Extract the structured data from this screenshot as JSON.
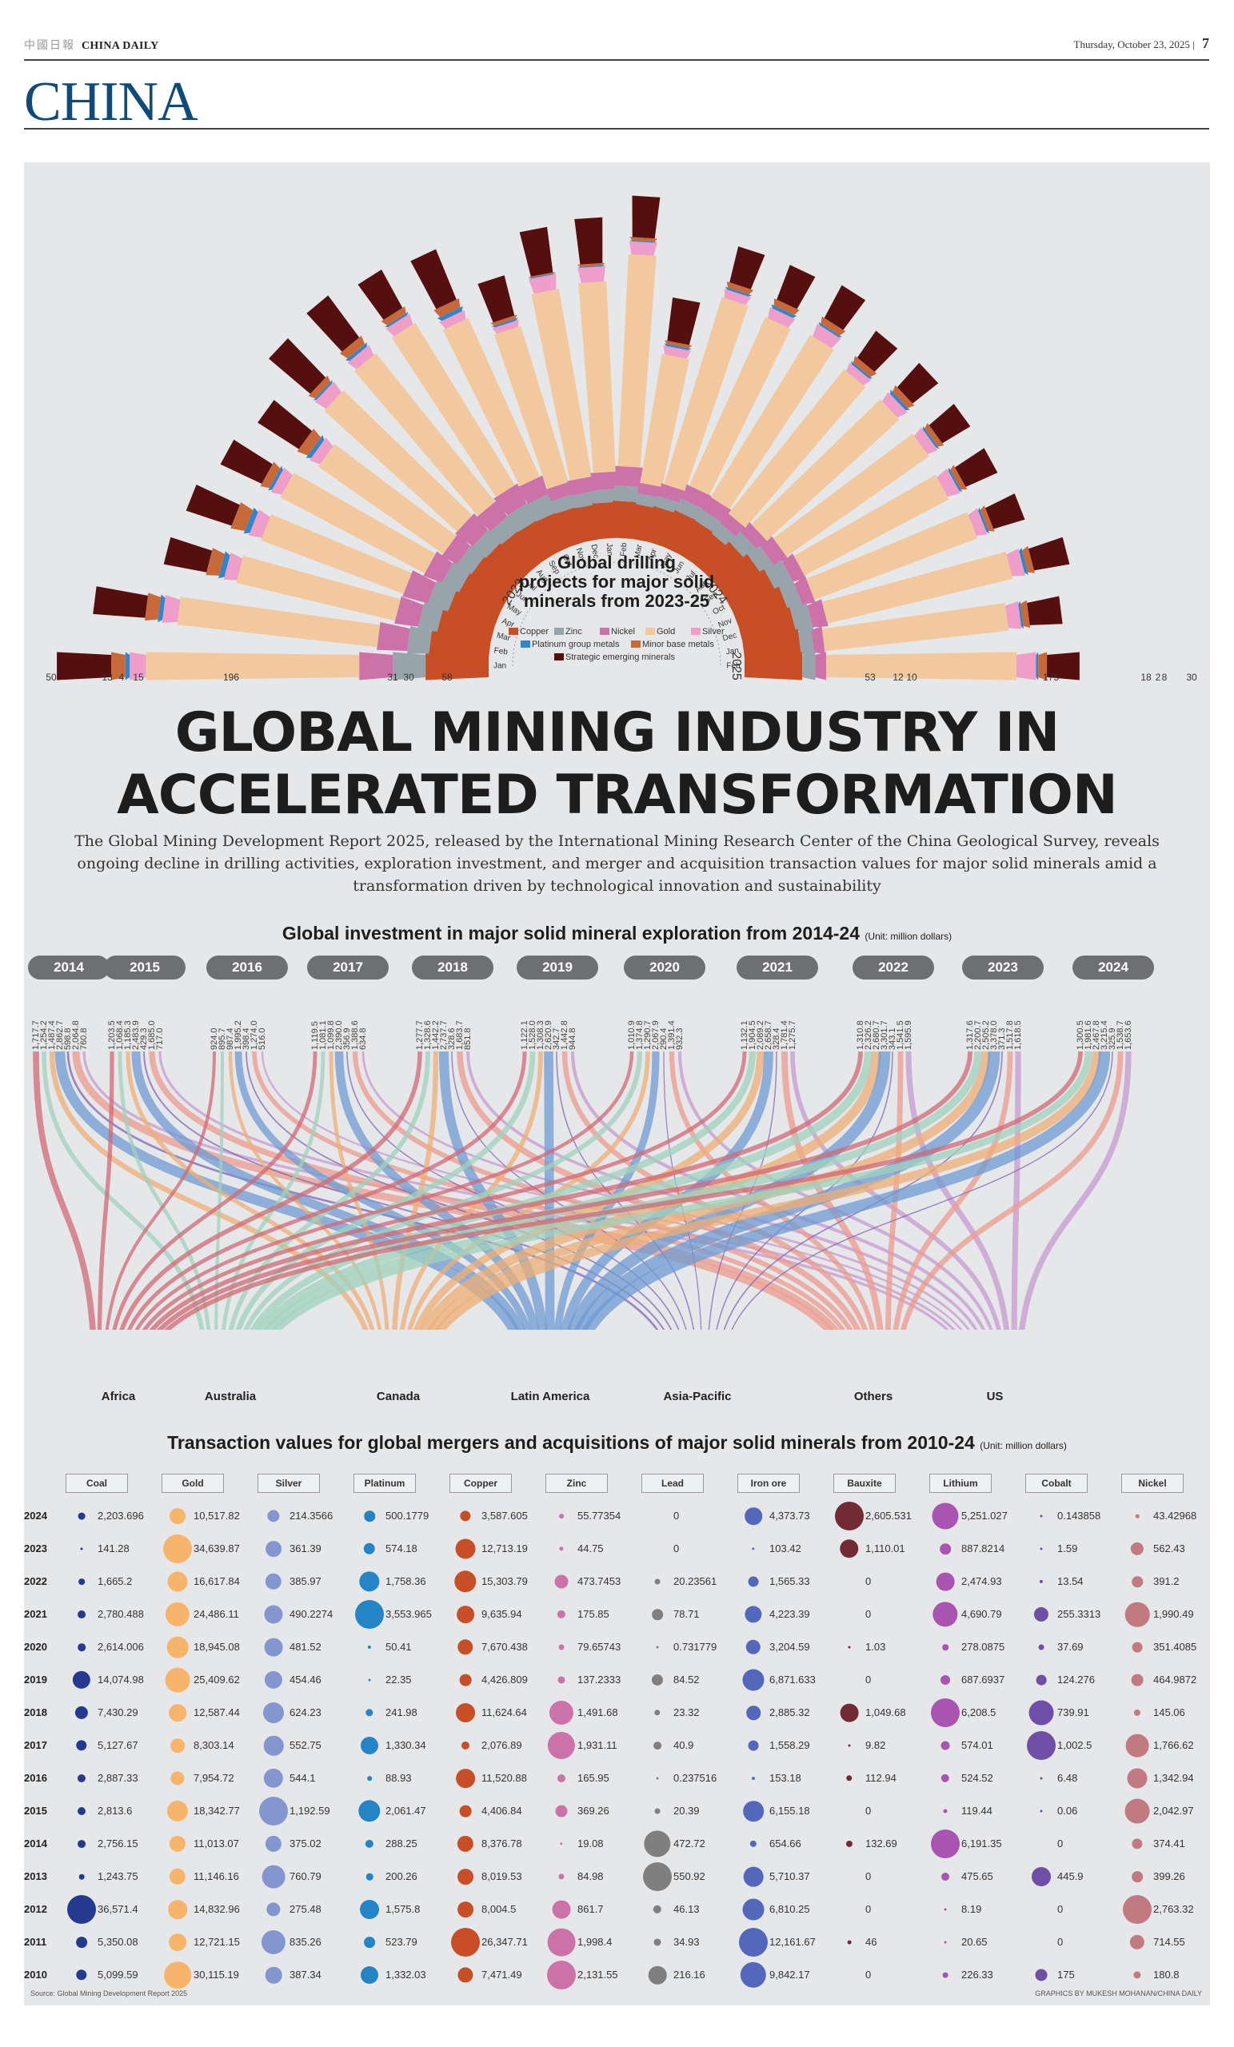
{
  "masthead": {
    "brand_cn": "中國日報",
    "brand": "CHINA DAILY",
    "date": "Thursday, October 23, 2025",
    "page": "7",
    "section": "CHINA"
  },
  "headline": "GLOBAL MINING INDUSTRY IN ACCELERATED TRANSFORMATION",
  "deck": "The Global Mining Development Report 2025, released by the International Mining Research Center of the China Geological Survey, reveals ongoing decline in drilling activities, exploration investment, and merger and acquisition transaction values for major solid minerals amid a transformation driven by technological innovation and sustainability",
  "colors": {
    "copper": "#c84e25",
    "zinc": "#98a4ab",
    "nickel": "#cc72a8",
    "gold": "#f2c99e",
    "silver": "#ee9ec8",
    "pgm": "#2f86c8",
    "minor": "#c8693a",
    "strategic": "#560f0f",
    "panel": "#e6e7e9"
  },
  "chart_data": [
    {
      "type": "bar",
      "subtype": "radial-stacked",
      "title": "Global drilling projects for major solid minerals from 2023-25",
      "categories": [
        "Jan 2023",
        "Feb 2023",
        "Mar 2023",
        "Apr 2023",
        "May 2023",
        "Jun 2023",
        "Jul 2023",
        "Aug 2023",
        "Sep 2023",
        "Oct 2023",
        "Nov 2023",
        "Dec 2023",
        "Jan 2024",
        "Feb 2024",
        "Mar 2024",
        "Apr 2024",
        "May 2024",
        "Jun 2024",
        "Jul 2024",
        "Aug 2024",
        "Sep 2024",
        "Oct 2024",
        "Nov 2024",
        "Dec 2024",
        "Jan 2025",
        "Feb 2025"
      ],
      "year_labels": [
        "2023",
        "2024",
        "2025"
      ],
      "month_labels": [
        "Jan",
        "Feb",
        "Mar",
        "Apr",
        "May",
        "Jun",
        "Jul",
        "Aug",
        "Sep",
        "Oct",
        "Nov",
        "Dec",
        "Jan",
        "Feb",
        "Mar",
        "Apr",
        "May",
        "Jun",
        "Jul",
        "Aug",
        "Sep",
        "Oct",
        "Nov",
        "Dec",
        "Jan",
        "Feb"
      ],
      "legend": [
        "Copper",
        "Zinc",
        "Nickel",
        "Gold",
        "Silver",
        "Platinum group metals",
        "Minor base metals",
        "Strategic emerging minerals"
      ],
      "series": [
        {
          "name": "Copper",
          "values": [
            58,
            55,
            50,
            45,
            42,
            40,
            38,
            36,
            35,
            34,
            33,
            32,
            33,
            34,
            32,
            33,
            35,
            34,
            32,
            36,
            40,
            44,
            48,
            50,
            52,
            53
          ]
        },
        {
          "name": "Zinc",
          "values": [
            30,
            20,
            18,
            20,
            18,
            16,
            16,
            16,
            18,
            18,
            12,
            12,
            12,
            14,
            10,
            10,
            12,
            12,
            12,
            14,
            14,
            18,
            14,
            16,
            12,
            12
          ]
        },
        {
          "name": "Nickel",
          "values": [
            31,
            28,
            22,
            24,
            18,
            16,
            20,
            18,
            20,
            18,
            12,
            14,
            16,
            18,
            10,
            12,
            14,
            14,
            12,
            12,
            14,
            12,
            12,
            14,
            10,
            10
          ]
        },
        {
          "name": "Gold",
          "values": [
            196,
            185,
            150,
            140,
            150,
            140,
            165,
            175,
            175,
            160,
            150,
            175,
            175,
            195,
            120,
            180,
            170,
            175,
            170,
            165,
            160,
            150,
            160,
            175,
            170,
            175
          ]
        },
        {
          "name": "Silver",
          "values": [
            15,
            14,
            12,
            12,
            10,
            10,
            12,
            10,
            10,
            8,
            6,
            14,
            14,
            12,
            8,
            8,
            10,
            12,
            8,
            10,
            10,
            12,
            10,
            12,
            12,
            18
          ]
        },
        {
          "name": "Platinum group metals",
          "values": [
            4,
            4,
            5,
            5,
            3,
            4,
            2,
            3,
            2,
            4,
            2,
            1,
            1,
            1,
            2,
            2,
            3,
            2,
            2,
            3,
            2,
            2,
            2,
            3,
            2,
            2
          ]
        },
        {
          "name": "Minor base metals",
          "values": [
            13,
            12,
            12,
            13,
            8,
            10,
            6,
            8,
            6,
            8,
            3,
            1,
            2,
            3,
            3,
            5,
            6,
            6,
            6,
            6,
            5,
            5,
            5,
            6,
            6,
            8
          ]
        },
        {
          "name": "Strategic emerging minerals",
          "values": [
            50,
            48,
            40,
            44,
            42,
            45,
            50,
            48,
            40,
            50,
            38,
            42,
            42,
            38,
            40,
            34,
            34,
            34,
            30,
            30,
            30,
            32,
            30,
            33,
            30,
            30
          ]
        }
      ],
      "labeled_bars": {
        "Jan 2023": {
          "Strategic emerging minerals": 50,
          "Minor base metals": 13,
          "Platinum group metals": 4,
          "Silver": 15,
          "Gold": 196,
          "Nickel": 31,
          "Zinc": 30,
          "Copper": 58
        },
        "Feb 2025": {
          "Copper": 53,
          "Zinc": 12,
          "Nickel": 10,
          "Gold": 175,
          "Silver": 18,
          "Platinum group metals": 2,
          "Minor base metals": 8,
          "Strategic emerging minerals": 30
        }
      }
    },
    {
      "type": "sankey",
      "title": "Global investment in major solid mineral exploration from 2014-24",
      "unit": "(Unit: million dollars)",
      "x": [
        "2014",
        "2015",
        "2016",
        "2017",
        "2018",
        "2019",
        "2020",
        "2021",
        "2022",
        "2023",
        "2024"
      ],
      "regions": [
        "Africa",
        "Australia",
        "Canada",
        "Latin America",
        "Asia-Pacific",
        "Others",
        "US"
      ],
      "region_colors": [
        "#d06a74",
        "#9fd1bd",
        "#eeaf74",
        "#6e9bd2",
        "#8064b4",
        "#ec9b8e",
        "#c59ad0"
      ],
      "series": [
        {
          "name": "Africa",
          "values": [
            1717.7,
            1203.5,
            924.0,
            1119.5,
            1277.7,
            1122.1,
            1010.9,
            1132.1,
            1310.8,
            1317.6,
            1300.5
          ]
        },
        {
          "name": "Australia",
          "values": [
            1254.2,
            1068.4,
            895.7,
            1081.1,
            1328.6,
            1528.0,
            1374.8,
            1904.5,
            2326.2,
            2200.7,
            1981.6
          ]
        },
        {
          "name": "Canada",
          "values": [
            1487.4,
            1185.3,
            987.4,
            1099.8,
            1442.2,
            1308.3,
            1290.7,
            2089.2,
            2680.7,
            2505.2,
            2467.8
          ]
        },
        {
          "name": "Latin America",
          "values": [
            2862.7,
            2483.9,
            1995.2,
            2390.0,
            2737.7,
            2620.9,
            2067.9,
            2658.7,
            3301.7,
            3378.0,
            3215.4
          ]
        },
        {
          "name": "Asia-Pacific",
          "values": [
            598.8,
            429.3,
            398.4,
            356.9,
            328.6,
            342.7,
            290.4,
            328.4,
            343.1,
            371.3,
            325.9
          ]
        },
        {
          "name": "Others",
          "values": [
            2064.8,
            1685.0,
            1274.0,
            1388.6,
            1683.7,
            1442.8,
            1391.4,
            1781.4,
            1541.5,
            1517.8,
            1538.7
          ]
        },
        {
          "name": "US",
          "values": [
            760.8,
            717.0,
            516.0,
            634.8,
            851.8,
            944.8,
            932.3,
            1275.7,
            1595.9,
            1618.5,
            1653.6
          ]
        }
      ],
      "value_labels": [
        [
          "1,717.7",
          "1,254.2",
          "1,487.4",
          "2,862.7",
          "598.8",
          "2,064.8",
          "760.8"
        ],
        [
          "1,203.5",
          "1,068.4",
          "1,185.3",
          "2,483.9",
          "429.3",
          "1,685.0",
          "717.0"
        ],
        [
          "924.0",
          "895.7",
          "987.4",
          "1,995.2",
          "398.4",
          "1,274.0",
          "516.0"
        ],
        [
          "1,119.5",
          "1,081.1",
          "1,099.8",
          "2,390.0",
          "356.9",
          "1,388.6",
          "634.8"
        ],
        [
          "1,277.7",
          "1,328.6",
          "1,442.2",
          "2,737.7",
          "328.6",
          "1,683.7",
          "851.8"
        ],
        [
          "1,122.1",
          "1,528.0",
          "1,308.3",
          "2,620.9",
          "342.7",
          "1,442.8",
          "944.8"
        ],
        [
          "1,010.9",
          "1,374.8",
          "1,290.7",
          "2,067.9",
          "290.4",
          "1,391.4",
          "932.3"
        ],
        [
          "1,132.1",
          "1,904.5",
          "2,089.2",
          "2,658.7",
          "328.4",
          "1,781.4",
          "1,275.7"
        ],
        [
          "1,310.8",
          "2,326.2",
          "2,680.7",
          "3,301.7",
          "343.1",
          "1,541.5",
          "1,595.9"
        ],
        [
          "1,317.6",
          "2,200.7",
          "2,505.2",
          "3,378.0",
          "371.3",
          "1,517.8",
          "1,618.5"
        ],
        [
          "1,300.5",
          "1,981.6",
          "2,467.8",
          "3,215.4",
          "325.9",
          "1,538.7",
          "1,653.6"
        ]
      ]
    },
    {
      "type": "table",
      "subtype": "bubble-table",
      "title": "Transaction values for global mergers and acquisitions of major solid minerals from 2010-24",
      "unit": "(Unit: million dollars)",
      "columns": [
        "Coal",
        "Gold",
        "Silver",
        "Platinum",
        "Copper",
        "Zinc",
        "Lead",
        "Iron ore",
        "Bauxite",
        "Lithium",
        "Cobalt",
        "Nickel"
      ],
      "column_colors": [
        "#243a8f",
        "#f7b56c",
        "#8496cf",
        "#2485c6",
        "#c84e25",
        "#cc72a8",
        "#7f7f80",
        "#5468bb",
        "#722a35",
        "#a854b0",
        "#6f4fa5",
        "#c07a80"
      ],
      "rows": [
        {
          "year": "2024",
          "values": [
            "2,203.696",
            "10,517.82",
            "214.3566",
            "500.1779",
            "3,587.605",
            "55.77354",
            "0",
            "4,373.73",
            "2,605.531",
            "5,251.027",
            "0.143858",
            "43.42968"
          ]
        },
        {
          "year": "2023",
          "values": [
            "141.28",
            "34,639.87",
            "361.39",
            "574.18",
            "12,713.19",
            "44.75",
            "0",
            "103.42",
            "1,110.01",
            "887.8214",
            "1.59",
            "562.43"
          ]
        },
        {
          "year": "2022",
          "values": [
            "1,665.2",
            "16,617.84",
            "385.97",
            "1,758.36",
            "15,303.79",
            "473.7453",
            "20.23561",
            "1,565.33",
            "0",
            "2,474.93",
            "13.54",
            "391.2"
          ]
        },
        {
          "year": "2021",
          "values": [
            "2,780.488",
            "24,486.11",
            "490.2274",
            "3,553.965",
            "9,635.94",
            "175.85",
            "78.71",
            "4,223.39",
            "0",
            "4,690.79",
            "255.3313",
            "1,990.49"
          ]
        },
        {
          "year": "2020",
          "values": [
            "2,614.006",
            "18,945.08",
            "481.52",
            "50.41",
            "7,670.438",
            "79.65743",
            "0.731779",
            "3,204.59",
            "1.03",
            "278.0875",
            "37.69",
            "351.4085"
          ]
        },
        {
          "year": "2019",
          "values": [
            "14,074.98",
            "25,409.62",
            "454.46",
            "22.35",
            "4,426.809",
            "137.2333",
            "84.52",
            "6,871.633",
            "0",
            "687.6937",
            "124.276",
            "464.9872"
          ]
        },
        {
          "year": "2018",
          "values": [
            "7,430.29",
            "12,587.44",
            "624.23",
            "241.98",
            "11,624.64",
            "1,491.68",
            "23.32",
            "2,885.32",
            "1,049.68",
            "6,208.5",
            "739.91",
            "145.06"
          ]
        },
        {
          "year": "2017",
          "values": [
            "5,127.67",
            "8,303.14",
            "552.75",
            "1,330.34",
            "2,076.89",
            "1,931.11",
            "40.9",
            "1,558.29",
            "9.82",
            "574.01",
            "1,002.5",
            "1,766.62"
          ]
        },
        {
          "year": "2016",
          "values": [
            "2,887.33",
            "7,954.72",
            "544.1",
            "88.93",
            "11,520.88",
            "165.95",
            "0.237516",
            "153.18",
            "112.94",
            "524.52",
            "6.48",
            "1,342.94"
          ]
        },
        {
          "year": "2015",
          "values": [
            "2,813.6",
            "18,342.77",
            "1,192.59",
            "2,061.47",
            "4,406.84",
            "369.26",
            "20.39",
            "6,155.18",
            "0",
            "119.44",
            "0.06",
            "2,042.97"
          ]
        },
        {
          "year": "2014",
          "values": [
            "2,756.15",
            "11,013.07",
            "375.02",
            "288.25",
            "8,376.78",
            "19.08",
            "472.72",
            "654.66",
            "132.69",
            "6,191.35",
            "0",
            "374.41"
          ]
        },
        {
          "year": "2013",
          "values": [
            "1,243.75",
            "11,146.16",
            "760.79",
            "200.26",
            "8,019.53",
            "84.98",
            "550.92",
            "5,710.37",
            "0",
            "475.65",
            "445.9",
            "399.26"
          ]
        },
        {
          "year": "2012",
          "values": [
            "36,571.4",
            "14,832.96",
            "275.48",
            "1,575.8",
            "8,004.5",
            "861.7",
            "46.13",
            "6,810.25",
            "0",
            "8.19",
            "0",
            "2,763.32"
          ]
        },
        {
          "year": "2011",
          "values": [
            "5,350.08",
            "12,721.15",
            "835.26",
            "523.79",
            "26,347.71",
            "1,998.4",
            "34.93",
            "12,161.67",
            "46",
            "20.65",
            "0",
            "714.55"
          ]
        },
        {
          "year": "2010",
          "values": [
            "5,099.59",
            "30,115.19",
            "387.34",
            "1,332.03",
            "7,471.49",
            "2,131.55",
            "216.16",
            "9,842.17",
            "0",
            "226.33",
            "175",
            "180.8"
          ]
        }
      ],
      "column_max": [
        36571.4,
        34639.87,
        1192.59,
        3553.965,
        26347.71,
        2131.55,
        550.92,
        12161.67,
        2605.531,
        6208.5,
        1002.5,
        2763.32
      ]
    }
  ],
  "drilling": {
    "title_lines": [
      "Global drilling",
      "projects for major solid",
      "minerals from 2023-25"
    ]
  },
  "exploration": {
    "title": "Global investment in major solid mineral exploration from 2014-24",
    "unit": "(Unit: million dollars)"
  },
  "mna": {
    "title": "Transaction values for global mergers and acquisitions of major solid minerals from 2010-24",
    "unit": "(Unit: million dollars)"
  },
  "footer": {
    "source": "Source: Global Mining Development Report 2025",
    "credit": "GRAPHICS BY MUKESH MOHANAN/CHINA DAILY"
  }
}
